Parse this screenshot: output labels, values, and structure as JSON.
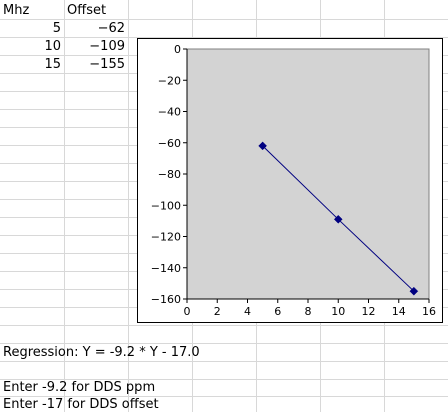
{
  "sheet": {
    "headers": [
      "Mhz",
      "Offset"
    ],
    "rows": [
      [
        "5",
        "−62"
      ],
      [
        "10",
        "−109"
      ],
      [
        "15",
        "−155"
      ]
    ],
    "regression_text": "Regression:  Y = -9.2 * Y - 17.0",
    "note_ppm": "Enter -9.2 for DDS ppm",
    "note_offset": "Enter -17 for DDS offset"
  },
  "chart_data": {
    "type": "scatter",
    "x": [
      5,
      10,
      15
    ],
    "y": [
      -62,
      -109,
      -155
    ],
    "xlim": [
      0,
      16
    ],
    "ylim": [
      -160,
      0
    ],
    "xticks": [
      "0",
      "2",
      "4",
      "6",
      "8",
      "10",
      "12",
      "14",
      "16"
    ],
    "yticks": [
      "0",
      "−20",
      "−40",
      "−60",
      "−80",
      "−100",
      "−120",
      "−140",
      "−160"
    ],
    "plot_background": "#d3d3d3",
    "series_color": "#000080",
    "marker": "diamond",
    "connected": true,
    "grid": false,
    "legend": "none"
  }
}
